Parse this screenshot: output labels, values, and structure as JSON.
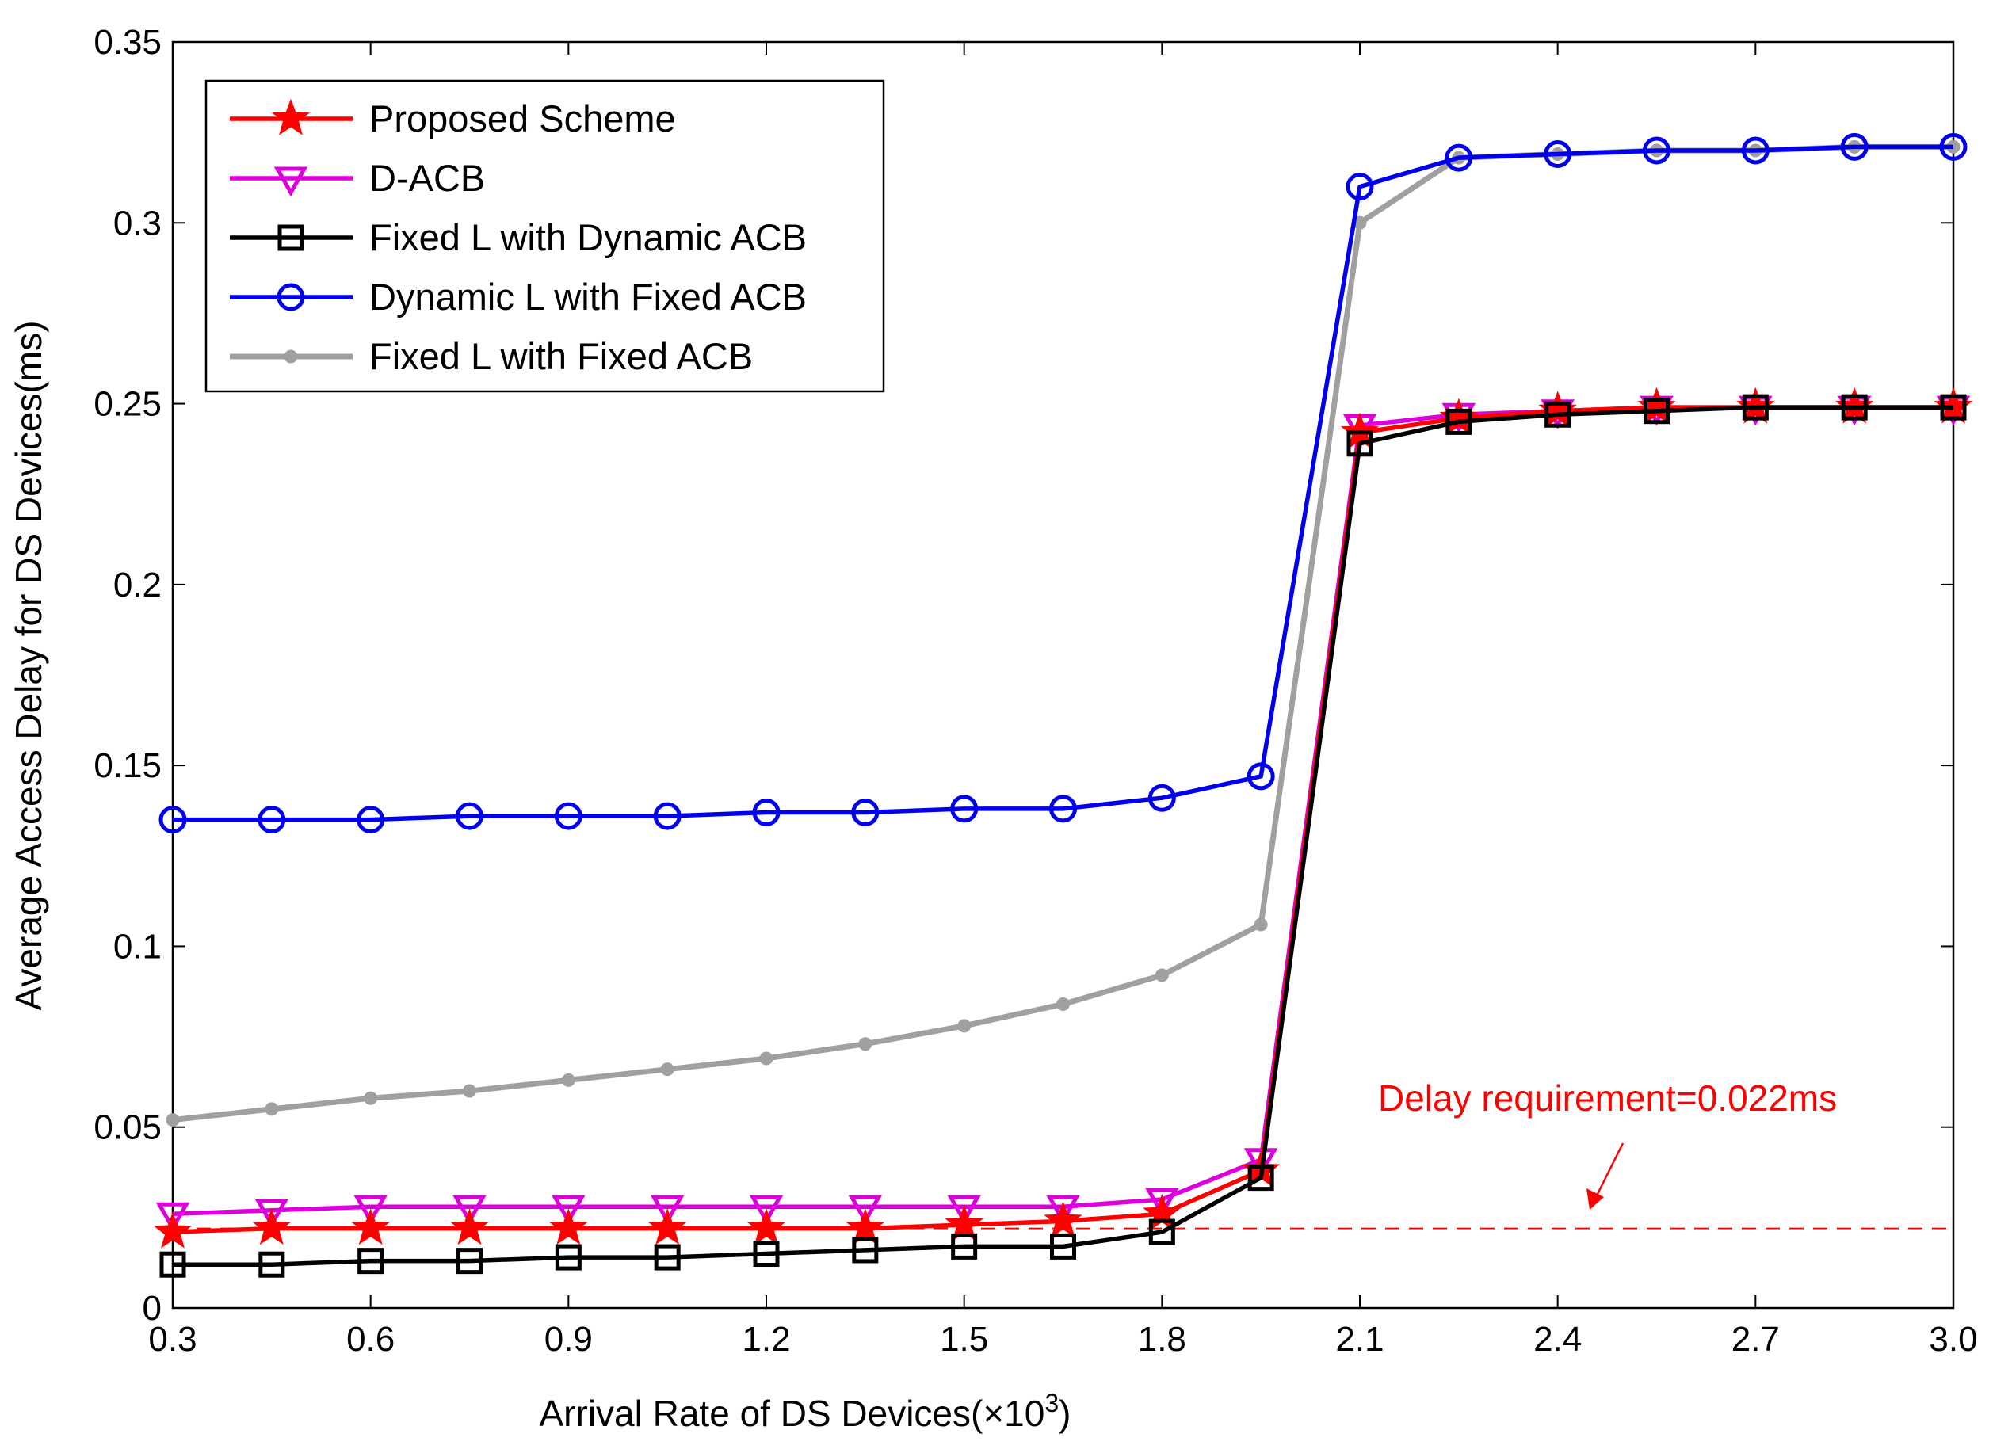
{
  "chart_data": {
    "type": "line",
    "xlabel": "Arrival Rate of DS Devices(×10",
    "xlabel_exponent": "3",
    "xlabel_suffix": ")",
    "ylabel": "Average Access Delay for DS Devices(ms)",
    "xlim": [
      0.3,
      3.0
    ],
    "ylim": [
      0,
      0.35
    ],
    "grid": false,
    "legend_position": "top-left",
    "x": [
      0.3,
      0.45,
      0.6,
      0.75,
      0.9,
      1.05,
      1.2,
      1.35,
      1.5,
      1.65,
      1.8,
      1.95,
      2.1,
      2.25,
      2.4,
      2.55,
      2.7,
      2.85,
      3.0
    ],
    "x_ticks": [
      0.3,
      0.6,
      0.9,
      1.2,
      1.5,
      1.8,
      2.1,
      2.4,
      2.7,
      3.0
    ],
    "x_tick_labels": [
      "0.3",
      "0.6",
      "0.9",
      "1.2",
      "1.5",
      "1.8",
      "2.1",
      "2.4",
      "2.7",
      "3.0"
    ],
    "y_ticks": [
      0,
      0.05,
      0.1,
      0.15,
      0.2,
      0.25,
      0.3,
      0.35
    ],
    "y_tick_labels": [
      "0",
      "0.05",
      "0.1",
      "0.15",
      "0.2",
      "0.25",
      "0.3",
      "0.35"
    ],
    "series": [
      {
        "name": "Proposed Scheme",
        "color": "#ff0000",
        "marker": "star",
        "values": [
          0.021,
          0.022,
          0.022,
          0.022,
          0.022,
          0.022,
          0.022,
          0.022,
          0.023,
          0.024,
          0.026,
          0.038,
          0.242,
          0.246,
          0.248,
          0.249,
          0.249,
          0.249,
          0.249
        ]
      },
      {
        "name": "D-ACB",
        "color": "#dd00dd",
        "marker": "triangle-down",
        "values": [
          0.026,
          0.027,
          0.028,
          0.028,
          0.028,
          0.028,
          0.028,
          0.028,
          0.028,
          0.028,
          0.03,
          0.041,
          0.244,
          0.247,
          0.248,
          0.249,
          0.249,
          0.249,
          0.249
        ]
      },
      {
        "name": "Fixed L with Dynamic ACB",
        "color": "#000000",
        "marker": "square",
        "values": [
          0.012,
          0.012,
          0.013,
          0.013,
          0.014,
          0.014,
          0.015,
          0.016,
          0.017,
          0.017,
          0.021,
          0.036,
          0.239,
          0.245,
          0.247,
          0.248,
          0.249,
          0.249,
          0.249
        ]
      },
      {
        "name": "Dynamic L with Fixed ACB",
        "color": "#0000ee",
        "marker": "circle",
        "values": [
          0.135,
          0.135,
          0.135,
          0.136,
          0.136,
          0.136,
          0.137,
          0.137,
          0.138,
          0.138,
          0.141,
          0.147,
          0.31,
          0.318,
          0.319,
          0.32,
          0.32,
          0.321,
          0.321
        ]
      },
      {
        "name": "Fixed L with Fixed ACB",
        "color": "#a0a0a0",
        "marker": "dot",
        "values": [
          0.052,
          0.055,
          0.058,
          0.06,
          0.063,
          0.066,
          0.069,
          0.073,
          0.078,
          0.084,
          0.092,
          0.106,
          0.3,
          0.318,
          0.319,
          0.32,
          0.32,
          0.321,
          0.321
        ]
      }
    ],
    "reference_line": {
      "y": 0.022,
      "color": "#ff0000",
      "style": "dashed"
    },
    "annotation": {
      "text": "Delay requirement=0.022ms",
      "color": "#ff0000"
    }
  }
}
